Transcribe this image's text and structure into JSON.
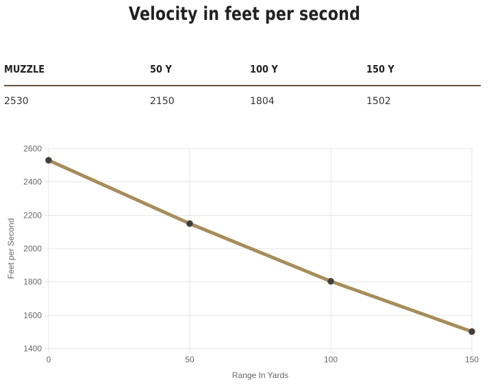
{
  "header": {
    "title": "Velocity in feet per second"
  },
  "table": {
    "headers": [
      "MUZZLE",
      "50 Y",
      "100 Y",
      "150 Y"
    ],
    "values": [
      "2530",
      "2150",
      "1804",
      "1502"
    ]
  },
  "colors": {
    "line": "#a68d5b",
    "point": "#3d3d3d",
    "grid": "#e5e5e5",
    "rule": "#5c5140"
  },
  "chart_data": {
    "type": "line",
    "xlabel": "Range In Yards",
    "ylabel": "Feet per Second",
    "x": [
      0,
      50,
      100,
      150
    ],
    "series": [
      {
        "values": [
          2530,
          2150,
          1804,
          1502
        ]
      }
    ],
    "xlim": [
      0,
      150
    ],
    "ylim": [
      1400,
      2600
    ],
    "xticks": [
      "0",
      "50",
      "100",
      "150"
    ],
    "yticks": [
      "1400",
      "1600",
      "1800",
      "2000",
      "2200",
      "2400",
      "2600"
    ],
    "grid": true,
    "legend": "none"
  }
}
